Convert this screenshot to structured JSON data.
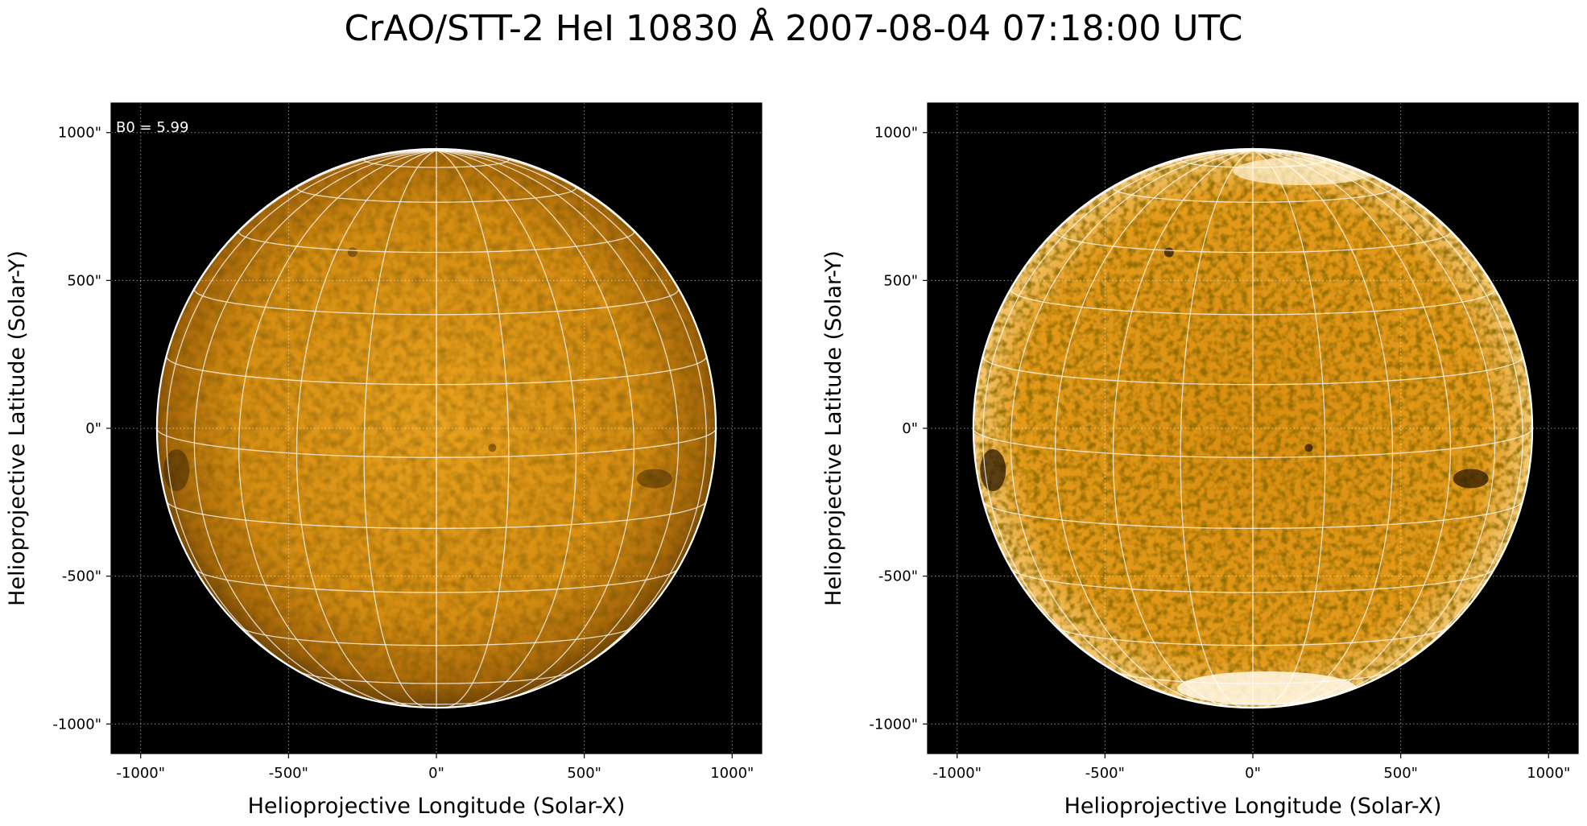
{
  "figure": {
    "title": "CrAO/STT-2 HeI 10830 Å 2007-08-04 07:18:00 UTC"
  },
  "panels": [
    {
      "xlabel": "Helioprojective Longitude (Solar-X)",
      "ylabel": "Helioprojective Latitude (Solar-Y)",
      "annotation": "B0 = 5.99",
      "xticks": [
        "-1000\"",
        "-500\"",
        "0\"",
        "500\"",
        "1000\""
      ],
      "yticks": [
        "1000\"",
        "500\"",
        "0\"",
        "-500\"",
        "-1000\""
      ],
      "style": "original"
    },
    {
      "xlabel": "Helioprojective Longitude (Solar-X)",
      "ylabel": "Helioprojective Latitude (Solar-Y)",
      "annotation": "",
      "xticks": [
        "-1000\"",
        "-500\"",
        "0\"",
        "500\"",
        "1000\""
      ],
      "yticks": [
        "1000\"",
        "500\"",
        "0\"",
        "-500\"",
        "-1000\""
      ],
      "style": "enhanced"
    }
  ],
  "image": {
    "subject": "solar disk in HeI 10830 Å, orange colormap, heliographic grid overlay",
    "x_range_arcsec": [
      -1100,
      1100
    ],
    "y_range_arcsec": [
      -1100,
      1100
    ],
    "solar_radius_arcsec": 945,
    "B0_deg": 5.99,
    "grid_spacing_deg": 15,
    "colors": {
      "background": "#000000",
      "disk_center": "#e39a18",
      "disk_limb": "#7a4a06",
      "enhanced_disk": "#d88f12",
      "grid": "#ffffff"
    }
  }
}
